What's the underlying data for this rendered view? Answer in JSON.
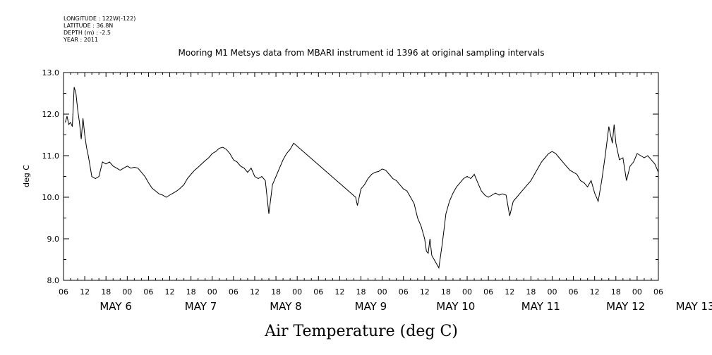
{
  "header": {
    "lines": [
      "LONGITUDE : 122W(-122)",
      "LATITUDE : 36.8N",
      "DEPTH (m) : -2.5",
      "YEAR : 2011"
    ]
  },
  "chart_data": {
    "type": "line",
    "title": "Mooring M1 Metsys data from MBARI instrument id 1396 at original sampling intervals",
    "xlabel": "Air Temperature (deg C)",
    "ylabel": "deg C",
    "ylim": [
      8.0,
      13.0
    ],
    "yticks": [
      "8.0",
      "9.0",
      "10.0",
      "11.0",
      "12.0",
      "13.0"
    ],
    "xlim": [
      "2011-05-06T06:00",
      "2011-05-13T06:00"
    ],
    "hour_ticks": [
      "06",
      "12",
      "18",
      "00",
      "06",
      "12",
      "18",
      "00",
      "06",
      "12",
      "18",
      "00",
      "06",
      "12",
      "18",
      "00",
      "06",
      "12",
      "18",
      "00",
      "06",
      "12",
      "18",
      "00",
      "06",
      "12",
      "18",
      "00",
      "06"
    ],
    "date_labels": [
      "MAY  6",
      "MAY  7",
      "MAY  8",
      "MAY  9",
      "MAY 10",
      "MAY 11",
      "MAY 12",
      "MAY 13"
    ],
    "grid": false,
    "series": [
      {
        "color": "#000000",
        "points": [
          [
            "2011-05-06T06:30",
            11.8
          ],
          [
            "2011-05-06T07:00",
            11.95
          ],
          [
            "2011-05-06T07:30",
            11.75
          ],
          [
            "2011-05-06T08:00",
            11.8
          ],
          [
            "2011-05-06T08:30",
            11.7
          ],
          [
            "2011-05-06T09:00",
            12.65
          ],
          [
            "2011-05-06T09:30",
            12.5
          ],
          [
            "2011-05-06T10:00",
            12.1
          ],
          [
            "2011-05-06T10:30",
            11.8
          ],
          [
            "2011-05-06T11:00",
            11.4
          ],
          [
            "2011-05-06T11:30",
            11.9
          ],
          [
            "2011-05-06T12:00",
            11.5
          ],
          [
            "2011-05-06T12:30",
            11.2
          ],
          [
            "2011-05-06T13:00",
            11.0
          ],
          [
            "2011-05-06T13:30",
            10.75
          ],
          [
            "2011-05-06T14:00",
            10.5
          ],
          [
            "2011-05-06T15:00",
            10.45
          ],
          [
            "2011-05-06T16:00",
            10.5
          ],
          [
            "2011-05-06T17:00",
            10.85
          ],
          [
            "2011-05-06T18:00",
            10.8
          ],
          [
            "2011-05-06T19:00",
            10.85
          ],
          [
            "2011-05-06T20:00",
            10.75
          ],
          [
            "2011-05-06T21:00",
            10.7
          ],
          [
            "2011-05-06T22:00",
            10.65
          ],
          [
            "2011-05-06T23:00",
            10.7
          ],
          [
            "2011-05-07T00:00",
            10.75
          ],
          [
            "2011-05-07T01:00",
            10.7
          ],
          [
            "2011-05-07T02:00",
            10.72
          ],
          [
            "2011-05-07T03:00",
            10.7
          ],
          [
            "2011-05-07T04:00",
            10.6
          ],
          [
            "2011-05-07T05:00",
            10.5
          ],
          [
            "2011-05-07T06:00",
            10.35
          ],
          [
            "2011-05-07T07:00",
            10.22
          ],
          [
            "2011-05-07T08:00",
            10.15
          ],
          [
            "2011-05-07T09:00",
            10.08
          ],
          [
            "2011-05-07T10:00",
            10.05
          ],
          [
            "2011-05-07T11:00",
            10.0
          ],
          [
            "2011-05-07T12:00",
            10.05
          ],
          [
            "2011-05-07T13:00",
            10.1
          ],
          [
            "2011-05-07T14:00",
            10.15
          ],
          [
            "2011-05-07T15:00",
            10.22
          ],
          [
            "2011-05-07T16:00",
            10.3
          ],
          [
            "2011-05-07T17:00",
            10.45
          ],
          [
            "2011-05-07T18:00",
            10.55
          ],
          [
            "2011-05-07T19:00",
            10.65
          ],
          [
            "2011-05-07T20:00",
            10.72
          ],
          [
            "2011-05-07T21:00",
            10.8
          ],
          [
            "2011-05-07T22:00",
            10.88
          ],
          [
            "2011-05-07T23:00",
            10.95
          ],
          [
            "2011-05-08T00:00",
            11.05
          ],
          [
            "2011-05-08T01:00",
            11.1
          ],
          [
            "2011-05-08T02:00",
            11.18
          ],
          [
            "2011-05-08T03:00",
            11.2
          ],
          [
            "2011-05-08T04:00",
            11.15
          ],
          [
            "2011-05-08T05:00",
            11.05
          ],
          [
            "2011-05-08T06:00",
            10.9
          ],
          [
            "2011-05-08T07:00",
            10.85
          ],
          [
            "2011-05-08T08:00",
            10.75
          ],
          [
            "2011-05-08T09:00",
            10.7
          ],
          [
            "2011-05-08T10:00",
            10.6
          ],
          [
            "2011-05-08T11:00",
            10.7
          ],
          [
            "2011-05-08T12:00",
            10.5
          ],
          [
            "2011-05-08T13:00",
            10.45
          ],
          [
            "2011-05-08T14:00",
            10.5
          ],
          [
            "2011-05-08T15:00",
            10.4
          ],
          [
            "2011-05-08T16:00",
            9.6
          ],
          [
            "2011-05-08T17:00",
            10.3
          ],
          [
            "2011-05-08T18:00",
            10.5
          ],
          [
            "2011-05-08T19:00",
            10.7
          ],
          [
            "2011-05-08T20:00",
            10.9
          ],
          [
            "2011-05-08T21:00",
            11.05
          ],
          [
            "2011-05-08T22:00",
            11.15
          ],
          [
            "2011-05-08T23:00",
            11.3
          ],
          [
            "2011-05-09T16:30",
            10.0
          ],
          [
            "2011-05-09T17:00",
            9.8
          ],
          [
            "2011-05-09T18:00",
            10.2
          ],
          [
            "2011-05-09T19:00",
            10.3
          ],
          [
            "2011-05-09T20:00",
            10.45
          ],
          [
            "2011-05-09T21:00",
            10.55
          ],
          [
            "2011-05-09T22:00",
            10.6
          ],
          [
            "2011-05-09T23:00",
            10.62
          ],
          [
            "2011-05-10T00:00",
            10.68
          ],
          [
            "2011-05-10T01:00",
            10.65
          ],
          [
            "2011-05-10T02:00",
            10.55
          ],
          [
            "2011-05-10T03:00",
            10.45
          ],
          [
            "2011-05-10T04:00",
            10.4
          ],
          [
            "2011-05-10T05:00",
            10.3
          ],
          [
            "2011-05-10T06:00",
            10.2
          ],
          [
            "2011-05-10T07:00",
            10.15
          ],
          [
            "2011-05-10T08:00",
            10.0
          ],
          [
            "2011-05-10T09:00",
            9.85
          ],
          [
            "2011-05-10T10:00",
            9.5
          ],
          [
            "2011-05-10T11:00",
            9.3
          ],
          [
            "2011-05-10T12:00",
            9.0
          ],
          [
            "2011-05-10T12:30",
            8.7
          ],
          [
            "2011-05-10T13:00",
            8.65
          ],
          [
            "2011-05-10T13:30",
            9.0
          ],
          [
            "2011-05-10T14:00",
            8.6
          ],
          [
            "2011-05-10T15:00",
            8.45
          ],
          [
            "2011-05-10T16:00",
            8.3
          ],
          [
            "2011-05-10T17:00",
            8.9
          ],
          [
            "2011-05-10T18:00",
            9.6
          ],
          [
            "2011-05-10T19:00",
            9.9
          ],
          [
            "2011-05-10T20:00",
            10.1
          ],
          [
            "2011-05-10T21:00",
            10.25
          ],
          [
            "2011-05-10T22:00",
            10.35
          ],
          [
            "2011-05-10T23:00",
            10.45
          ],
          [
            "2011-05-11T00:00",
            10.5
          ],
          [
            "2011-05-11T01:00",
            10.45
          ],
          [
            "2011-05-11T02:00",
            10.55
          ],
          [
            "2011-05-11T03:00",
            10.35
          ],
          [
            "2011-05-11T04:00",
            10.15
          ],
          [
            "2011-05-11T05:00",
            10.05
          ],
          [
            "2011-05-11T06:00",
            10.0
          ],
          [
            "2011-05-11T07:00",
            10.05
          ],
          [
            "2011-05-11T08:00",
            10.1
          ],
          [
            "2011-05-11T09:00",
            10.05
          ],
          [
            "2011-05-11T10:00",
            10.08
          ],
          [
            "2011-05-11T11:00",
            10.05
          ],
          [
            "2011-05-11T12:00",
            9.55
          ],
          [
            "2011-05-11T13:00",
            9.9
          ],
          [
            "2011-05-11T14:00",
            10.0
          ],
          [
            "2011-05-11T15:00",
            10.1
          ],
          [
            "2011-05-11T16:00",
            10.2
          ],
          [
            "2011-05-11T17:00",
            10.3
          ],
          [
            "2011-05-11T18:00",
            10.4
          ],
          [
            "2011-05-11T19:00",
            10.55
          ],
          [
            "2011-05-11T20:00",
            10.7
          ],
          [
            "2011-05-11T21:00",
            10.85
          ],
          [
            "2011-05-11T22:00",
            10.95
          ],
          [
            "2011-05-11T23:00",
            11.05
          ],
          [
            "2011-05-12T00:00",
            11.1
          ],
          [
            "2011-05-12T01:00",
            11.05
          ],
          [
            "2011-05-12T02:00",
            10.95
          ],
          [
            "2011-05-12T03:00",
            10.85
          ],
          [
            "2011-05-12T04:00",
            10.75
          ],
          [
            "2011-05-12T05:00",
            10.65
          ],
          [
            "2011-05-12T06:00",
            10.6
          ],
          [
            "2011-05-12T07:00",
            10.55
          ],
          [
            "2011-05-12T08:00",
            10.4
          ],
          [
            "2011-05-12T09:00",
            10.35
          ],
          [
            "2011-05-12T10:00",
            10.25
          ],
          [
            "2011-05-12T11:00",
            10.4
          ],
          [
            "2011-05-12T12:00",
            10.1
          ],
          [
            "2011-05-12T13:00",
            9.9
          ],
          [
            "2011-05-12T14:00",
            10.4
          ],
          [
            "2011-05-12T15:00",
            11.0
          ],
          [
            "2011-05-12T16:00",
            11.7
          ],
          [
            "2011-05-12T17:00",
            11.3
          ],
          [
            "2011-05-12T17:30",
            11.75
          ],
          [
            "2011-05-12T18:00",
            11.3
          ],
          [
            "2011-05-12T19:00",
            10.9
          ],
          [
            "2011-05-12T20:00",
            10.95
          ],
          [
            "2011-05-12T21:00",
            10.4
          ],
          [
            "2011-05-12T22:00",
            10.75
          ],
          [
            "2011-05-12T23:00",
            10.85
          ],
          [
            "2011-05-13T00:00",
            11.05
          ],
          [
            "2011-05-13T01:00",
            11.0
          ],
          [
            "2011-05-13T02:00",
            10.95
          ],
          [
            "2011-05-13T03:00",
            11.0
          ],
          [
            "2011-05-13T04:00",
            10.9
          ],
          [
            "2011-05-13T05:00",
            10.8
          ],
          [
            "2011-05-13T06:00",
            10.6
          ]
        ]
      }
    ]
  }
}
